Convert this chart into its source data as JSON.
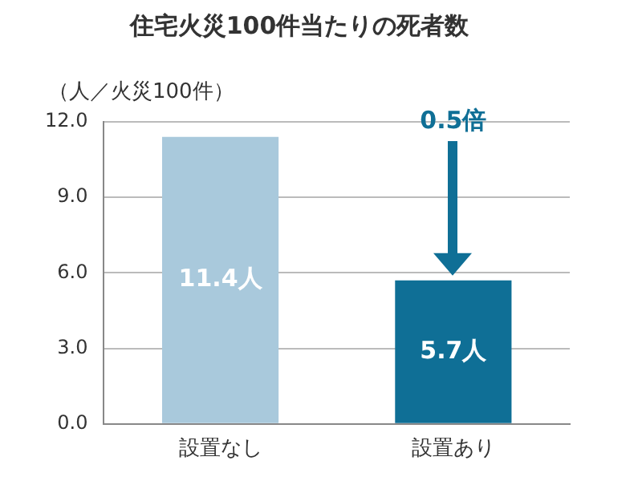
{
  "chart_data": {
    "type": "bar",
    "title": "住宅火災100件当たりの死者数",
    "ylabel": "（人／火災100件）",
    "categories": [
      "設置なし",
      "設置あり"
    ],
    "values": [
      11.4,
      5.7
    ],
    "colors": [
      "#a9c9dc",
      "#0f6f96"
    ],
    "value_labels": [
      "11.4人",
      "5.7人"
    ],
    "ylim": [
      0,
      12
    ],
    "yticks": [
      {
        "value": 0,
        "label": "0.0"
      },
      {
        "value": 3,
        "label": "3.0"
      },
      {
        "value": 6,
        "label": "6.0"
      },
      {
        "value": 9,
        "label": "9.0"
      },
      {
        "value": 12,
        "label": "12.0"
      }
    ],
    "grid": "y",
    "annotations": [
      "0.5倍"
    ]
  }
}
